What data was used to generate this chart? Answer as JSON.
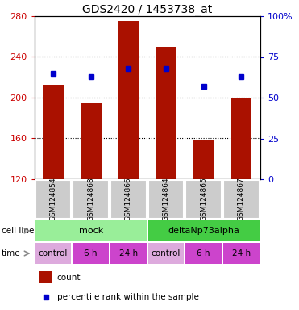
{
  "title": "GDS2420 / 1453738_at",
  "samples": [
    "GSM124854",
    "GSM124868",
    "GSM124866",
    "GSM124864",
    "GSM124865",
    "GSM124867"
  ],
  "bar_values": [
    213,
    195,
    275,
    250,
    158,
    200
  ],
  "percentile_values": [
    65,
    63,
    68,
    68,
    57,
    63
  ],
  "bar_color": "#aa1100",
  "dot_color": "#0000cc",
  "ymin": 120,
  "ymax": 280,
  "y_ticks": [
    120,
    160,
    200,
    240,
    280
  ],
  "y2min": 0,
  "y2max": 100,
  "y2_ticks": [
    0,
    25,
    50,
    75,
    100
  ],
  "y2_tick_labels": [
    "0",
    "25",
    "50",
    "75",
    "100%"
  ],
  "cell_line_labels": [
    "mock",
    "deltaNp73alpha"
  ],
  "cell_line_spans": [
    [
      0,
      3
    ],
    [
      3,
      6
    ]
  ],
  "cell_line_colors": [
    "#99ee99",
    "#44cc44"
  ],
  "time_labels": [
    "control",
    "6 h",
    "24 h",
    "control",
    "6 h",
    "24 h"
  ],
  "time_colors_list": [
    "#ddaadd",
    "#cc44cc",
    "#cc44cc",
    "#ddaadd",
    "#cc44cc",
    "#cc44cc"
  ],
  "bar_width": 0.55,
  "legend_count_color": "#aa1100",
  "legend_dot_color": "#0000cc",
  "axis_label_color_left": "#cc0000",
  "axis_label_color_right": "#0000cc",
  "sample_box_color": "#cccccc",
  "fig_width": 3.71,
  "fig_height": 3.84,
  "dpi": 100
}
